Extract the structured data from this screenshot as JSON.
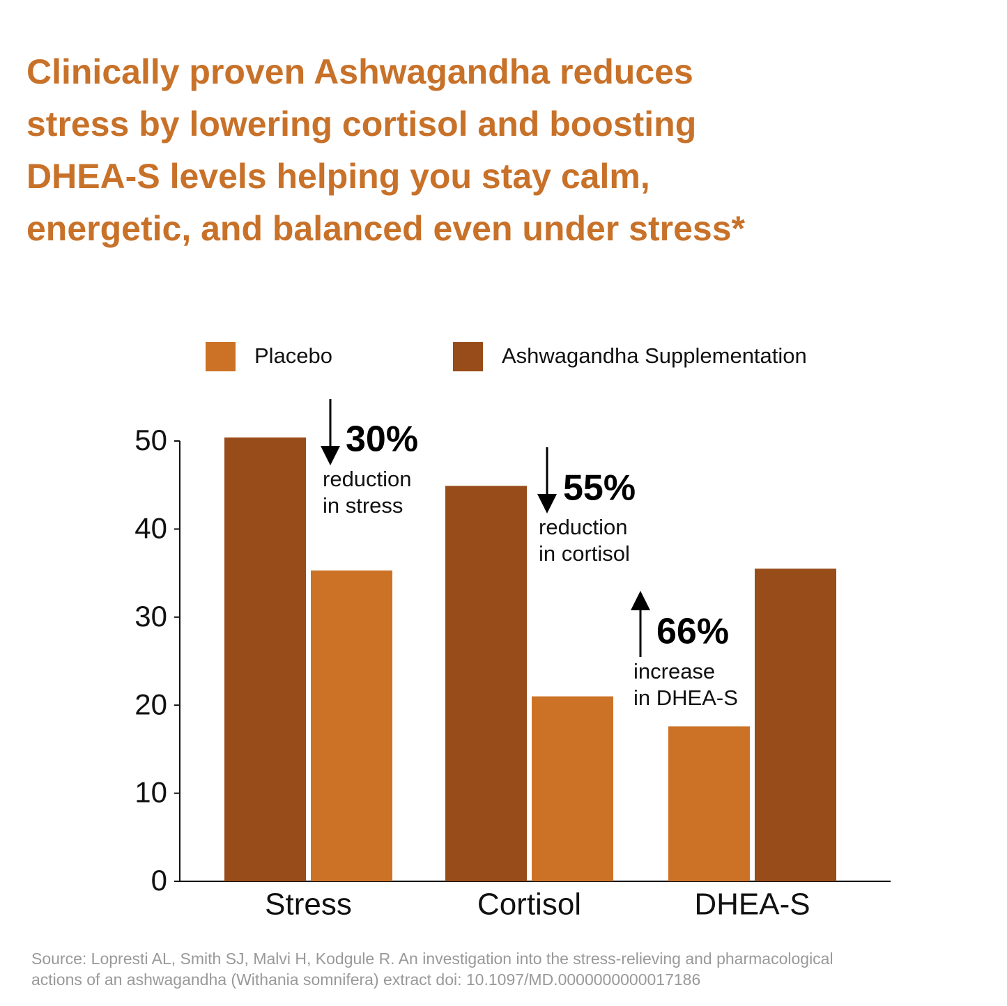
{
  "chart_data": {
    "type": "bar",
    "title": [
      "Clinically proven Ashwagandha reduces",
      "stress by lowering cortisol and boosting",
      "DHEA-S levels helping you stay calm,",
      "energetic, and balanced even under stress*"
    ],
    "categories": [
      "Stress",
      "Cortisol",
      "DHEA-S"
    ],
    "series": [
      {
        "name": "Placebo",
        "color": "#cc7226",
        "values": [
          35.3,
          21.0,
          17.6
        ]
      },
      {
        "name": "Ashwagandha Supplementation",
        "color": "#974c1a",
        "values": [
          50.4,
          44.9,
          35.5
        ]
      }
    ],
    "ylim": [
      0,
      50
    ],
    "yticks": [
      0,
      10,
      20,
      30,
      40,
      50
    ],
    "grid": false,
    "annotations": [
      {
        "headline": "30%",
        "lines": [
          "reduction",
          "in stress"
        ],
        "direction": "down"
      },
      {
        "headline": "55%",
        "lines": [
          "reduction",
          "in cortisol"
        ],
        "direction": "down"
      },
      {
        "headline": "66%",
        "lines": [
          "increase",
          "in DHEA-S"
        ],
        "direction": "up"
      }
    ],
    "source": [
      "Source: Lopresti AL, Smith SJ, Malvi H, Kodgule R. An investigation into the stress-relieving and pharmacological",
      "actions of an ashwagandha (Withania somnifera) extract doi: 10.1097/MD.0000000000017186"
    ]
  }
}
